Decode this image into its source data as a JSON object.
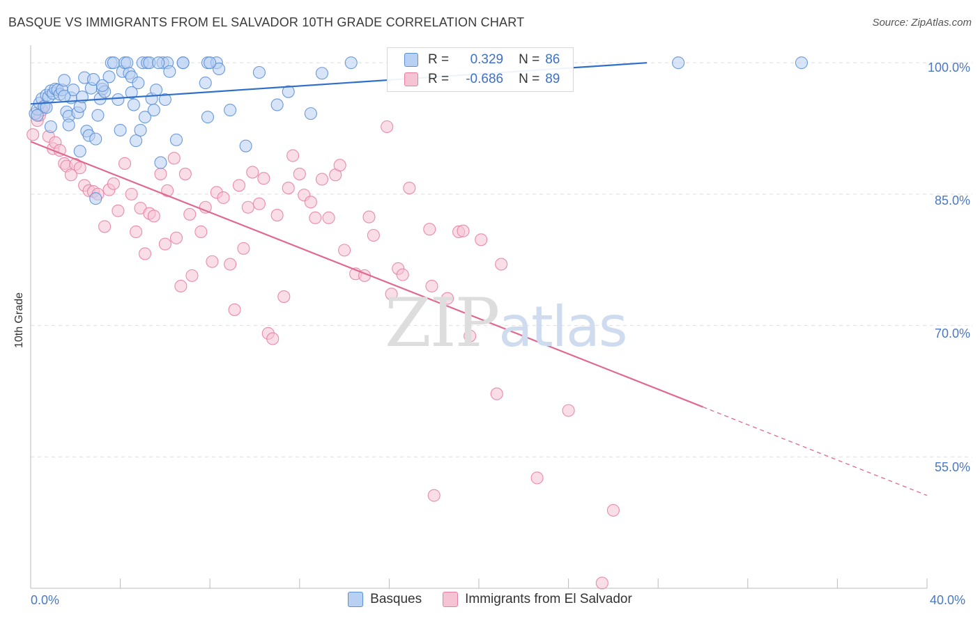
{
  "title": "BASQUE VS IMMIGRANTS FROM EL SALVADOR 10TH GRADE CORRELATION CHART",
  "source": "Source: ZipAtlas.com",
  "watermark": {
    "zip": "ZIP",
    "atlas": "atlas"
  },
  "legend": {
    "r_label": "R =",
    "n_label": "N =",
    "series": [
      {
        "name": "Basques",
        "r": "0.329",
        "n": "86",
        "color": "#5b8fd6",
        "fill": "#b8d0f2",
        "line": "#2f6fca"
      },
      {
        "name": "Immigrants from El Salvador",
        "r": "-0.686",
        "n": "89",
        "color": "#e97ea3",
        "fill": "#f6c3d4",
        "line": "#e0698f"
      }
    ]
  },
  "chart_data": {
    "type": "scatter",
    "title": "BASQUE VS IMMIGRANTS FROM EL SALVADOR 10TH GRADE CORRELATION CHART",
    "xlabel": "",
    "ylabel": "10th Grade",
    "xlim": [
      0,
      40
    ],
    "ylim": [
      40,
      102
    ],
    "x_tick_labels": [
      "0.0%",
      "40.0%"
    ],
    "y_ticks": [
      100,
      85,
      70,
      55
    ],
    "y_tick_labels": [
      "100.0%",
      "85.0%",
      "70.0%",
      "55.0%"
    ],
    "grid": true,
    "series": [
      {
        "name": "Basques",
        "trend": {
          "x0": 0,
          "y0": 95.3,
          "x1": 27.5,
          "y1": 100
        },
        "points": [
          [
            0.2,
            94.2
          ],
          [
            0.3,
            94.7
          ],
          [
            0.4,
            95.4
          ],
          [
            0.5,
            95.9
          ],
          [
            0.6,
            95.0
          ],
          [
            0.7,
            96.3
          ],
          [
            0.8,
            96.1
          ],
          [
            0.9,
            96.8
          ],
          [
            1.0,
            96.5
          ],
          [
            1.1,
            97.0
          ],
          [
            0.9,
            92.7
          ],
          [
            1.2,
            96.9
          ],
          [
            1.3,
            96.4
          ],
          [
            1.4,
            96.9
          ],
          [
            1.5,
            98.0
          ],
          [
            1.6,
            94.4
          ],
          [
            1.7,
            93.9
          ],
          [
            1.7,
            92.9
          ],
          [
            1.8,
            96.0
          ],
          [
            1.9,
            96.9
          ],
          [
            2.1,
            94.3
          ],
          [
            2.2,
            95.0
          ],
          [
            2.2,
            89.9
          ],
          [
            2.3,
            96.1
          ],
          [
            2.4,
            98.3
          ],
          [
            2.5,
            92.2
          ],
          [
            2.6,
            91.7
          ],
          [
            2.7,
            97.1
          ],
          [
            2.8,
            98.1
          ],
          [
            2.9,
            91.3
          ],
          [
            3.0,
            94.0
          ],
          [
            3.1,
            95.9
          ],
          [
            3.2,
            97.0
          ],
          [
            3.3,
            96.7
          ],
          [
            3.5,
            98.4
          ],
          [
            3.6,
            100.0
          ],
          [
            3.7,
            100.0
          ],
          [
            3.9,
            95.8
          ],
          [
            4.0,
            92.3
          ],
          [
            4.1,
            99.0
          ],
          [
            4.2,
            100.0
          ],
          [
            4.3,
            100.0
          ],
          [
            4.4,
            98.8
          ],
          [
            4.5,
            98.4
          ],
          [
            4.6,
            95.2
          ],
          [
            4.7,
            91.1
          ],
          [
            4.8,
            97.7
          ],
          [
            4.9,
            92.3
          ],
          [
            5.0,
            100.0
          ],
          [
            5.1,
            93.8
          ],
          [
            5.2,
            100.0
          ],
          [
            5.3,
            100.0
          ],
          [
            5.4,
            95.9
          ],
          [
            5.5,
            94.6
          ],
          [
            5.6,
            96.9
          ],
          [
            5.8,
            88.6
          ],
          [
            5.9,
            100.0
          ],
          [
            6.0,
            95.8
          ],
          [
            6.1,
            100.0
          ],
          [
            6.2,
            99.0
          ],
          [
            6.5,
            91.2
          ],
          [
            6.8,
            100.0
          ],
          [
            7.8,
            97.7
          ],
          [
            7.9,
            100.0
          ],
          [
            7.9,
            93.8
          ],
          [
            8.3,
            100.0
          ],
          [
            8.4,
            99.3
          ],
          [
            8.9,
            94.6
          ],
          [
            9.6,
            90.5
          ],
          [
            10.2,
            98.9
          ],
          [
            11.0,
            95.2
          ],
          [
            11.5,
            96.7
          ],
          [
            12.5,
            94.2
          ],
          [
            13.0,
            98.8
          ],
          [
            14.3,
            100.0
          ],
          [
            28.9,
            100.0
          ],
          [
            34.4,
            100.0
          ],
          [
            0.3,
            94.0
          ],
          [
            0.7,
            94.9
          ],
          [
            1.5,
            96.2
          ],
          [
            2.9,
            84.5
          ],
          [
            3.2,
            97.4
          ],
          [
            4.5,
            96.6
          ],
          [
            5.7,
            100.0
          ],
          [
            6.8,
            100.0
          ],
          [
            8.0,
            100.0
          ]
        ]
      },
      {
        "name": "Immigrants from El Salvador",
        "trend": {
          "x0": 0,
          "y0": 91.0,
          "x1": 30,
          "y1": 60.7,
          "x2": 40,
          "y2": 50.6
        },
        "points": [
          [
            0.1,
            91.8
          ],
          [
            0.3,
            93.4
          ],
          [
            0.4,
            94.0
          ],
          [
            0.6,
            95.1
          ],
          [
            0.8,
            91.6
          ],
          [
            1.0,
            90.2
          ],
          [
            1.1,
            90.9
          ],
          [
            1.3,
            90.0
          ],
          [
            1.5,
            88.5
          ],
          [
            1.6,
            88.2
          ],
          [
            1.8,
            87.2
          ],
          [
            2.0,
            88.4
          ],
          [
            2.2,
            88.0
          ],
          [
            2.4,
            86.0
          ],
          [
            2.6,
            85.4
          ],
          [
            2.8,
            85.3
          ],
          [
            3.0,
            85.0
          ],
          [
            3.3,
            81.3
          ],
          [
            3.5,
            85.5
          ],
          [
            3.7,
            86.2
          ],
          [
            3.9,
            83.1
          ],
          [
            4.2,
            88.5
          ],
          [
            4.5,
            85.0
          ],
          [
            4.7,
            80.7
          ],
          [
            4.9,
            83.4
          ],
          [
            5.1,
            78.2
          ],
          [
            5.3,
            82.8
          ],
          [
            5.5,
            82.5
          ],
          [
            5.8,
            87.3
          ],
          [
            6.0,
            79.3
          ],
          [
            6.1,
            85.4
          ],
          [
            6.4,
            89.1
          ],
          [
            6.5,
            80.0
          ],
          [
            6.7,
            74.5
          ],
          [
            6.9,
            87.3
          ],
          [
            7.1,
            82.7
          ],
          [
            7.2,
            75.7
          ],
          [
            7.6,
            80.7
          ],
          [
            7.8,
            83.5
          ],
          [
            8.1,
            77.3
          ],
          [
            8.3,
            85.2
          ],
          [
            8.6,
            84.6
          ],
          [
            8.9,
            77.0
          ],
          [
            9.1,
            71.8
          ],
          [
            9.3,
            86.0
          ],
          [
            9.5,
            78.8
          ],
          [
            9.7,
            83.5
          ],
          [
            9.9,
            87.5
          ],
          [
            10.2,
            83.9
          ],
          [
            10.4,
            86.8
          ],
          [
            10.6,
            69.1
          ],
          [
            10.8,
            68.5
          ],
          [
            11.0,
            82.6
          ],
          [
            11.3,
            73.3
          ],
          [
            11.5,
            85.7
          ],
          [
            11.7,
            89.4
          ],
          [
            12.0,
            87.3
          ],
          [
            12.2,
            84.9
          ],
          [
            12.5,
            84.1
          ],
          [
            12.7,
            82.3
          ],
          [
            13.0,
            86.7
          ],
          [
            13.3,
            82.3
          ],
          [
            13.6,
            87.2
          ],
          [
            13.8,
            88.3
          ],
          [
            14.0,
            78.6
          ],
          [
            14.5,
            75.9
          ],
          [
            14.9,
            75.7
          ],
          [
            15.1,
            82.4
          ],
          [
            15.3,
            80.3
          ],
          [
            15.9,
            92.7
          ],
          [
            16.1,
            73.6
          ],
          [
            16.4,
            76.5
          ],
          [
            16.6,
            75.8
          ],
          [
            16.9,
            85.7
          ],
          [
            17.8,
            81.0
          ],
          [
            17.9,
            74.5
          ],
          [
            18.6,
            73.1
          ],
          [
            19.1,
            80.7
          ],
          [
            19.3,
            80.8
          ],
          [
            19.6,
            68.8
          ],
          [
            20.1,
            79.8
          ],
          [
            20.8,
            62.2
          ],
          [
            21.0,
            77.0
          ],
          [
            22.6,
            52.6
          ],
          [
            24.0,
            60.3
          ],
          [
            26.0,
            48.9
          ],
          [
            18.0,
            50.6
          ],
          [
            25.5,
            40.6
          ],
          [
            0.5,
            94.6
          ]
        ]
      }
    ]
  }
}
